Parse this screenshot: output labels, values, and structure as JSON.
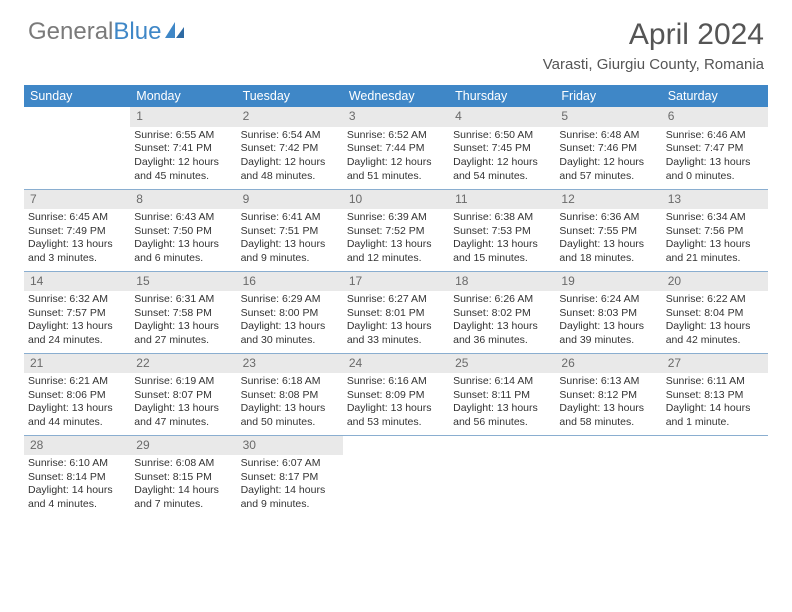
{
  "brand": {
    "part1": "General",
    "part2": "Blue"
  },
  "title": "April 2024",
  "location": "Varasti, Giurgiu County, Romania",
  "colors": {
    "header_bg": "#3f87c7",
    "header_fg": "#ffffff",
    "daynum_bg": "#e9e9e9",
    "daynum_fg": "#6a6a6a",
    "cell_border": "#8aaed0",
    "brand_gray": "#7a7a7a",
    "brand_blue": "#3f87c7"
  },
  "day_names": [
    "Sunday",
    "Monday",
    "Tuesday",
    "Wednesday",
    "Thursday",
    "Friday",
    "Saturday"
  ],
  "first_weekday_offset": 1,
  "days": [
    {
      "n": 1,
      "sr": "6:55 AM",
      "ss": "7:41 PM",
      "dl": "12 hours and 45 minutes."
    },
    {
      "n": 2,
      "sr": "6:54 AM",
      "ss": "7:42 PM",
      "dl": "12 hours and 48 minutes."
    },
    {
      "n": 3,
      "sr": "6:52 AM",
      "ss": "7:44 PM",
      "dl": "12 hours and 51 minutes."
    },
    {
      "n": 4,
      "sr": "6:50 AM",
      "ss": "7:45 PM",
      "dl": "12 hours and 54 minutes."
    },
    {
      "n": 5,
      "sr": "6:48 AM",
      "ss": "7:46 PM",
      "dl": "12 hours and 57 minutes."
    },
    {
      "n": 6,
      "sr": "6:46 AM",
      "ss": "7:47 PM",
      "dl": "13 hours and 0 minutes."
    },
    {
      "n": 7,
      "sr": "6:45 AM",
      "ss": "7:49 PM",
      "dl": "13 hours and 3 minutes."
    },
    {
      "n": 8,
      "sr": "6:43 AM",
      "ss": "7:50 PM",
      "dl": "13 hours and 6 minutes."
    },
    {
      "n": 9,
      "sr": "6:41 AM",
      "ss": "7:51 PM",
      "dl": "13 hours and 9 minutes."
    },
    {
      "n": 10,
      "sr": "6:39 AM",
      "ss": "7:52 PM",
      "dl": "13 hours and 12 minutes."
    },
    {
      "n": 11,
      "sr": "6:38 AM",
      "ss": "7:53 PM",
      "dl": "13 hours and 15 minutes."
    },
    {
      "n": 12,
      "sr": "6:36 AM",
      "ss": "7:55 PM",
      "dl": "13 hours and 18 minutes."
    },
    {
      "n": 13,
      "sr": "6:34 AM",
      "ss": "7:56 PM",
      "dl": "13 hours and 21 minutes."
    },
    {
      "n": 14,
      "sr": "6:32 AM",
      "ss": "7:57 PM",
      "dl": "13 hours and 24 minutes."
    },
    {
      "n": 15,
      "sr": "6:31 AM",
      "ss": "7:58 PM",
      "dl": "13 hours and 27 minutes."
    },
    {
      "n": 16,
      "sr": "6:29 AM",
      "ss": "8:00 PM",
      "dl": "13 hours and 30 minutes."
    },
    {
      "n": 17,
      "sr": "6:27 AM",
      "ss": "8:01 PM",
      "dl": "13 hours and 33 minutes."
    },
    {
      "n": 18,
      "sr": "6:26 AM",
      "ss": "8:02 PM",
      "dl": "13 hours and 36 minutes."
    },
    {
      "n": 19,
      "sr": "6:24 AM",
      "ss": "8:03 PM",
      "dl": "13 hours and 39 minutes."
    },
    {
      "n": 20,
      "sr": "6:22 AM",
      "ss": "8:04 PM",
      "dl": "13 hours and 42 minutes."
    },
    {
      "n": 21,
      "sr": "6:21 AM",
      "ss": "8:06 PM",
      "dl": "13 hours and 44 minutes."
    },
    {
      "n": 22,
      "sr": "6:19 AM",
      "ss": "8:07 PM",
      "dl": "13 hours and 47 minutes."
    },
    {
      "n": 23,
      "sr": "6:18 AM",
      "ss": "8:08 PM",
      "dl": "13 hours and 50 minutes."
    },
    {
      "n": 24,
      "sr": "6:16 AM",
      "ss": "8:09 PM",
      "dl": "13 hours and 53 minutes."
    },
    {
      "n": 25,
      "sr": "6:14 AM",
      "ss": "8:11 PM",
      "dl": "13 hours and 56 minutes."
    },
    {
      "n": 26,
      "sr": "6:13 AM",
      "ss": "8:12 PM",
      "dl": "13 hours and 58 minutes."
    },
    {
      "n": 27,
      "sr": "6:11 AM",
      "ss": "8:13 PM",
      "dl": "14 hours and 1 minute."
    },
    {
      "n": 28,
      "sr": "6:10 AM",
      "ss": "8:14 PM",
      "dl": "14 hours and 4 minutes."
    },
    {
      "n": 29,
      "sr": "6:08 AM",
      "ss": "8:15 PM",
      "dl": "14 hours and 7 minutes."
    },
    {
      "n": 30,
      "sr": "6:07 AM",
      "ss": "8:17 PM",
      "dl": "14 hours and 9 minutes."
    }
  ],
  "labels": {
    "sunrise": "Sunrise:",
    "sunset": "Sunset:",
    "daylight": "Daylight:"
  }
}
